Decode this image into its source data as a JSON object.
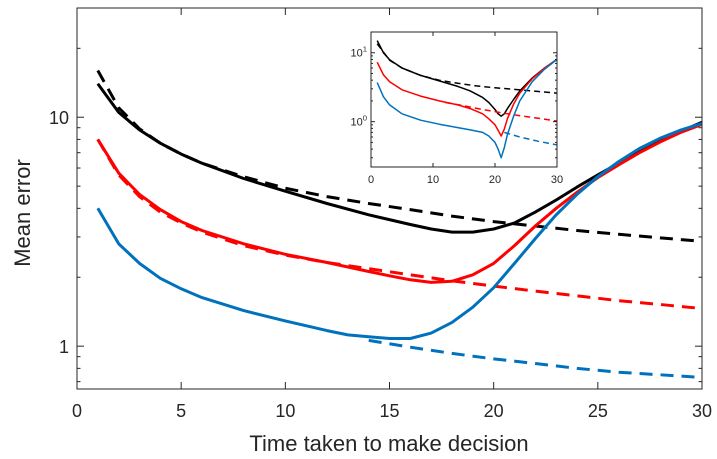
{
  "chart_data": [
    {
      "type": "line",
      "xlabel": "Time taken to make decision",
      "ylabel": "Mean error",
      "xlim": [
        0,
        30
      ],
      "ylim": [
        0.65,
        30
      ],
      "yscale": "log",
      "xticks": [
        0,
        5,
        10,
        15,
        20,
        25,
        30
      ],
      "yticks": [
        1,
        10
      ],
      "grid": false,
      "series": [
        {
          "color": "#000000",
          "style": "dashed",
          "x": [
            1,
            2,
            3,
            4,
            5,
            6,
            8,
            10,
            12,
            14,
            16,
            18,
            20,
            22,
            24,
            26,
            28,
            30
          ],
          "y": [
            16.0,
            11.0,
            8.9,
            7.7,
            6.9,
            6.3,
            5.5,
            4.9,
            4.5,
            4.2,
            3.95,
            3.7,
            3.5,
            3.35,
            3.2,
            3.08,
            2.97,
            2.87
          ]
        },
        {
          "color": "#000000",
          "style": "solid",
          "x": [
            1,
            2,
            3,
            4,
            5,
            6,
            8,
            10,
            12,
            14,
            16,
            17,
            18,
            19,
            20,
            21,
            22,
            23,
            24,
            25,
            26,
            27,
            28,
            29,
            30
          ],
          "y": [
            14.0,
            10.5,
            8.8,
            7.7,
            6.9,
            6.3,
            5.4,
            4.75,
            4.2,
            3.75,
            3.4,
            3.25,
            3.15,
            3.15,
            3.25,
            3.45,
            3.85,
            4.35,
            4.95,
            5.6,
            6.3,
            7.05,
            7.85,
            8.7,
            9.5
          ]
        },
        {
          "color": "#ff0000",
          "style": "dashed",
          "x": [
            1,
            2,
            3,
            4,
            5,
            6,
            8,
            10,
            12,
            14,
            16,
            18,
            20,
            22,
            24,
            26,
            28,
            30
          ],
          "y": [
            8.0,
            5.6,
            4.5,
            3.85,
            3.45,
            3.15,
            2.75,
            2.5,
            2.32,
            2.18,
            2.05,
            1.93,
            1.83,
            1.74,
            1.66,
            1.58,
            1.52,
            1.46
          ]
        },
        {
          "color": "#ff0000",
          "style": "solid",
          "x": [
            1,
            2,
            3,
            4,
            5,
            6,
            8,
            10,
            12,
            14,
            15,
            16,
            17,
            18,
            19,
            20,
            21,
            22,
            23,
            24,
            25,
            26,
            27,
            28,
            29,
            30
          ],
          "y": [
            8.0,
            5.7,
            4.6,
            3.95,
            3.5,
            3.2,
            2.8,
            2.52,
            2.32,
            2.12,
            2.03,
            1.95,
            1.9,
            1.92,
            2.05,
            2.3,
            2.75,
            3.35,
            4.0,
            4.7,
            5.45,
            6.2,
            7.0,
            7.8,
            8.6,
            9.3
          ]
        },
        {
          "color": "#0072bd",
          "style": "dashed",
          "x": [
            14,
            16,
            18,
            20,
            22,
            24,
            26,
            28,
            30
          ],
          "y": [
            1.06,
            0.99,
            0.93,
            0.88,
            0.84,
            0.8,
            0.77,
            0.75,
            0.73
          ]
        },
        {
          "color": "#0072bd",
          "style": "solid",
          "x": [
            1,
            2,
            3,
            4,
            5,
            6,
            8,
            10,
            12,
            13,
            14,
            15,
            16,
            17,
            18,
            19,
            20,
            21,
            22,
            23,
            24,
            25,
            26,
            27,
            28,
            29,
            30
          ],
          "y": [
            4.0,
            2.8,
            2.3,
            1.98,
            1.78,
            1.63,
            1.43,
            1.29,
            1.17,
            1.12,
            1.1,
            1.08,
            1.08,
            1.14,
            1.27,
            1.48,
            1.8,
            2.3,
            2.95,
            3.75,
            4.6,
            5.5,
            6.4,
            7.3,
            8.1,
            8.8,
            9.4
          ]
        }
      ]
    },
    {
      "type": "line",
      "xlim": [
        0,
        30
      ],
      "ylim": [
        0.22,
        20
      ],
      "yscale": "log",
      "xticks": [
        0,
        10,
        20,
        30
      ],
      "yticks": [
        1,
        10
      ],
      "grid": false,
      "series": [
        {
          "color": "#000000",
          "style": "dashed",
          "x": [
            1,
            3,
            5,
            8,
            11,
            14,
            17,
            20,
            23,
            26,
            30
          ],
          "y": [
            13.5,
            7.8,
            6.0,
            4.7,
            4.0,
            3.6,
            3.3,
            3.1,
            2.95,
            2.8,
            2.6
          ]
        },
        {
          "color": "#000000",
          "style": "solid",
          "x": [
            1,
            2,
            3,
            5,
            8,
            11,
            14,
            16,
            18,
            19,
            20,
            20.5,
            21,
            21.5,
            22,
            23,
            24,
            26,
            28,
            30
          ],
          "y": [
            15.0,
            10.0,
            7.9,
            6.0,
            4.7,
            3.9,
            3.25,
            2.8,
            2.25,
            1.9,
            1.5,
            1.3,
            1.2,
            1.3,
            1.55,
            2.1,
            2.8,
            4.3,
            6.0,
            8.0
          ]
        },
        {
          "color": "#ff0000",
          "style": "dashed",
          "x": [
            12,
            15,
            18,
            21,
            24,
            27,
            30
          ],
          "y": [
            1.9,
            1.7,
            1.5,
            1.35,
            1.22,
            1.12,
            1.02
          ]
        },
        {
          "color": "#ff0000",
          "style": "solid",
          "x": [
            1,
            2,
            3,
            5,
            8,
            11,
            14,
            16,
            18,
            19,
            20,
            20.5,
            21,
            21.5,
            22,
            23,
            24,
            26,
            28,
            30
          ],
          "y": [
            7.3,
            4.8,
            3.8,
            2.9,
            2.35,
            2.0,
            1.75,
            1.55,
            1.3,
            1.1,
            0.9,
            0.75,
            0.62,
            0.78,
            1.1,
            1.8,
            2.6,
            4.2,
            6.0,
            8.0
          ]
        },
        {
          "color": "#0072bd",
          "style": "dashed",
          "x": [
            21.5,
            24,
            27,
            30
          ],
          "y": [
            0.7,
            0.6,
            0.52,
            0.46
          ]
        },
        {
          "color": "#0072bd",
          "style": "solid",
          "x": [
            1,
            2,
            3,
            5,
            8,
            11,
            14,
            16,
            18,
            19,
            20,
            20.5,
            21,
            21.5,
            22,
            23,
            24,
            26,
            28,
            30
          ],
          "y": [
            3.7,
            2.3,
            1.75,
            1.3,
            1.05,
            0.92,
            0.82,
            0.76,
            0.7,
            0.62,
            0.5,
            0.4,
            0.3,
            0.42,
            0.65,
            1.2,
            2.0,
            3.8,
            5.8,
            8.0
          ]
        }
      ]
    }
  ]
}
